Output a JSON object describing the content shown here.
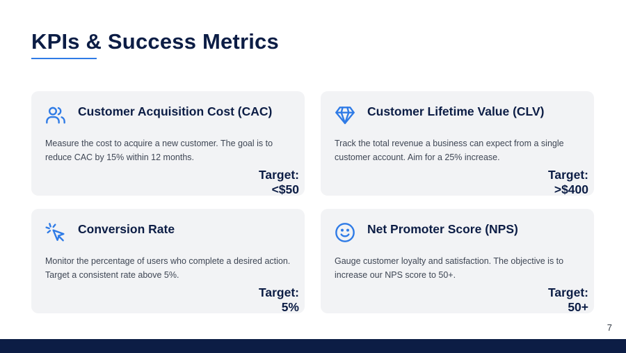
{
  "title": "KPIs & Success Metrics",
  "colors": {
    "heading": "#0c1d45",
    "accent": "#2f7be6",
    "card_background": "#f2f3f5",
    "footer_bar": "#0c1d45"
  },
  "cards": [
    {
      "icon": "users-icon",
      "title": "Customer Acquisition Cost (CAC)",
      "description": "Measure the cost to acquire a new customer. The goal is to reduce CAC by 15% within 12 months.",
      "target_label": "Target:",
      "target_value": "<$50"
    },
    {
      "icon": "diamond-icon",
      "title": "Customer Lifetime Value (CLV)",
      "description": "Track the total revenue a business can expect from a single customer account. Aim for a 25% increase.",
      "target_label": "Target:",
      "target_value": ">$400"
    },
    {
      "icon": "cursor-click-icon",
      "title": "Conversion Rate",
      "description": "Monitor the percentage of users who complete a desired action. Target a consistent rate above 5%.",
      "target_label": "Target:",
      "target_value": "5%"
    },
    {
      "icon": "smiley-icon",
      "title": "Net Promoter Score (NPS)",
      "description": "Gauge customer loyalty and satisfaction. The objective is to increase our NPS score to 50+.",
      "target_label": "Target:",
      "target_value": "50+"
    }
  ],
  "page_number": "7"
}
